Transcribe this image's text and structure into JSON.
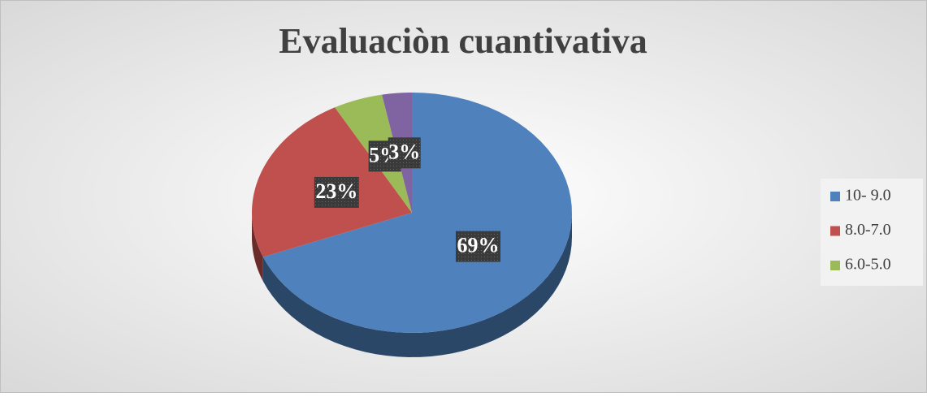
{
  "chart_data": {
    "type": "pie",
    "title": "Evaluaciòn cuantivativa",
    "categories": [
      "10- 9.0",
      "8.0-7.0",
      "6.0-5.0",
      null
    ],
    "values": [
      69,
      23,
      5,
      3
    ],
    "value_labels": [
      "69%",
      "23%",
      "5%",
      "3%"
    ],
    "colors": [
      "#4f81bd",
      "#c0504d",
      "#9bbb59",
      "#8064a2"
    ],
    "legend": "right"
  }
}
